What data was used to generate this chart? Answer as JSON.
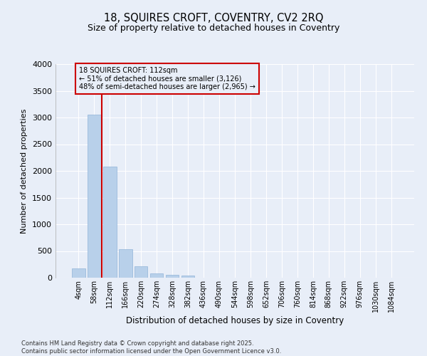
{
  "title1": "18, SQUIRES CROFT, COVENTRY, CV2 2RQ",
  "title2": "Size of property relative to detached houses in Coventry",
  "xlabel": "Distribution of detached houses by size in Coventry",
  "ylabel": "Number of detached properties",
  "categories": [
    "4sqm",
    "58sqm",
    "112sqm",
    "166sqm",
    "220sqm",
    "274sqm",
    "328sqm",
    "382sqm",
    "436sqm",
    "490sqm",
    "544sqm",
    "598sqm",
    "652sqm",
    "706sqm",
    "760sqm",
    "814sqm",
    "868sqm",
    "922sqm",
    "976sqm",
    "1030sqm",
    "1084sqm"
  ],
  "values": [
    170,
    3050,
    2080,
    540,
    220,
    85,
    50,
    35,
    0,
    0,
    0,
    0,
    0,
    0,
    0,
    0,
    0,
    0,
    0,
    0,
    0
  ],
  "bar_color": "#b8d0ea",
  "bar_edge_color": "#90b4d8",
  "property_line_color": "#cc0000",
  "annotation_text": "18 SQUIRES CROFT: 112sqm\n← 51% of detached houses are smaller (3,126)\n48% of semi-detached houses are larger (2,965) →",
  "annotation_box_color": "#cc0000",
  "background_color": "#e8eef8",
  "grid_color": "#ffffff",
  "ylim": [
    0,
    4000
  ],
  "yticks": [
    0,
    500,
    1000,
    1500,
    2000,
    2500,
    3000,
    3500,
    4000
  ],
  "footer1": "Contains HM Land Registry data © Crown copyright and database right 2025.",
  "footer2": "Contains public sector information licensed under the Open Government Licence v3.0."
}
